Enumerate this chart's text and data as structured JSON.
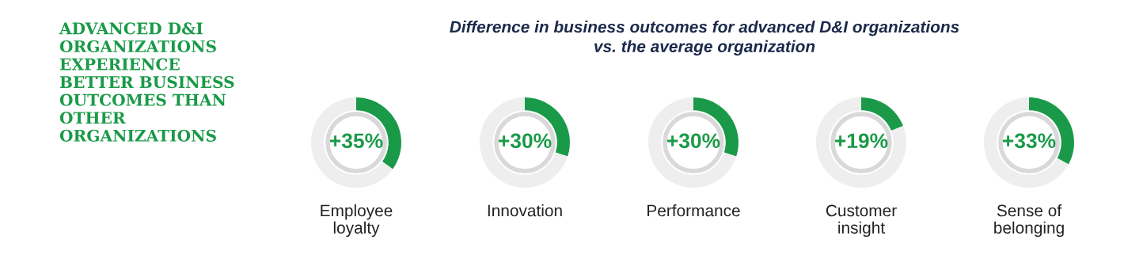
{
  "chart_data": [
    {
      "type": "other",
      "title": "ADVANCED D&I\nORGANIZATIONS\nEXPERIENCE\nBETTER BUSINESS\nOUTCOMES THAN\nOTHER\nORGANIZATIONS"
    },
    {
      "type": "other",
      "title": "Difference in business outcomes for advanced D&I organizations\nvs. the average organization"
    },
    {
      "type": "donut",
      "categories": [
        null,
        null
      ],
      "values": [
        35,
        65
      ],
      "colors": [
        "#1a9a48",
        "#eeeeee"
      ],
      "value_labels": [
        "+35%",
        null
      ],
      "xlabel": "Employee\nloyalty"
    },
    {
      "type": "donut",
      "categories": [
        null,
        null
      ],
      "values": [
        30,
        70
      ],
      "colors": [
        "#1a9a48",
        "#eeeeee"
      ],
      "value_labels": [
        "+30%",
        null
      ],
      "xlabel": "Innovation"
    },
    {
      "type": "donut",
      "categories": [
        null,
        null
      ],
      "values": [
        30,
        70
      ],
      "colors": [
        "#1a9a48",
        "#eeeeee"
      ],
      "value_labels": [
        "+30%",
        null
      ],
      "xlabel": "Performance"
    },
    {
      "type": "donut",
      "categories": [
        null,
        null
      ],
      "values": [
        19,
        81
      ],
      "colors": [
        "#1a9a48",
        "#eeeeee"
      ],
      "value_labels": [
        "+19%",
        null
      ],
      "xlabel": "Customer\ninsight"
    },
    {
      "type": "donut",
      "categories": [
        null,
        null
      ],
      "values": [
        33,
        67
      ],
      "colors": [
        "#1a9a48",
        "#eeeeee"
      ],
      "value_labels": [
        "+33%",
        null
      ],
      "xlabel": "Sense of\nbelonging"
    }
  ]
}
